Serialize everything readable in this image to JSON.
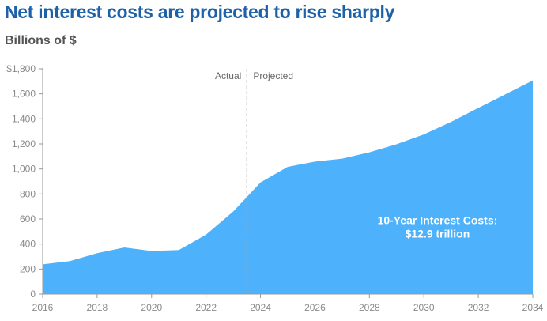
{
  "chart_data": {
    "type": "area",
    "title": "Net interest costs are projected to rise sharply",
    "subtitle": "Billions of $",
    "xlabel": "",
    "ylabel": "Billions of $",
    "x": [
      2016,
      2017,
      2018,
      2019,
      2020,
      2021,
      2022,
      2023,
      2024,
      2025,
      2026,
      2027,
      2028,
      2029,
      2030,
      2031,
      2032,
      2033,
      2034
    ],
    "series": [
      {
        "name": "Net interest costs",
        "values": [
          238,
          264,
          327,
          373,
          344,
          352,
          475,
          660,
          892,
          1017,
          1059,
          1082,
          1133,
          1198,
          1276,
          1376,
          1487,
          1597,
          1707
        ],
        "color": "#4db2fb"
      }
    ],
    "xlim": [
      2016,
      2034
    ],
    "ylim": [
      0,
      1800
    ],
    "x_ticks": [
      2016,
      2018,
      2020,
      2022,
      2024,
      2026,
      2028,
      2030,
      2032,
      2034
    ],
    "x_tick_labels": [
      "2016",
      "2018",
      "2020",
      "2022",
      "2024",
      "2026",
      "2028",
      "2030",
      "2032",
      "2034"
    ],
    "y_ticks": [
      0,
      200,
      400,
      600,
      800,
      1000,
      1200,
      1400,
      1600,
      1800
    ],
    "y_tick_labels": [
      "0",
      "200",
      "400",
      "600",
      "800",
      "1,000",
      "1,200",
      "1,400",
      "1,600",
      "$1,800"
    ],
    "divider": {
      "x": 2023.5,
      "left_label": "Actual",
      "right_label": "Projected"
    },
    "annotation": {
      "line1": "10-Year Interest Costs:",
      "line2": "$12.9 trillion",
      "x": 2030.5,
      "y": 560
    },
    "grid": false,
    "legend": "none"
  }
}
